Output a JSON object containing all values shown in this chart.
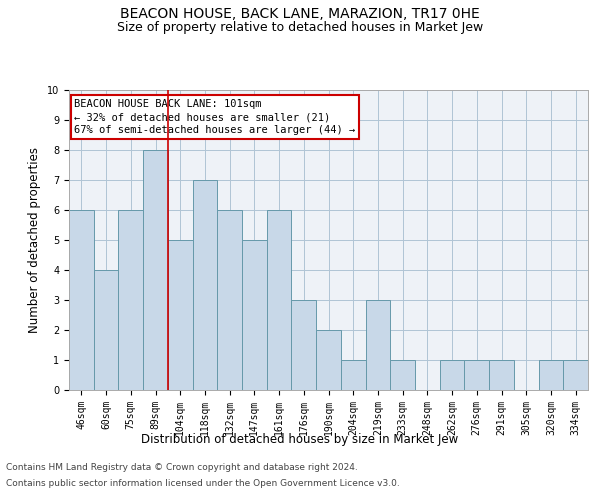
{
  "title": "BEACON HOUSE, BACK LANE, MARAZION, TR17 0HE",
  "subtitle": "Size of property relative to detached houses in Market Jew",
  "xlabel": "Distribution of detached houses by size in Market Jew",
  "ylabel": "Number of detached properties",
  "categories": [
    "46sqm",
    "60sqm",
    "75sqm",
    "89sqm",
    "104sqm",
    "118sqm",
    "132sqm",
    "147sqm",
    "161sqm",
    "176sqm",
    "190sqm",
    "204sqm",
    "219sqm",
    "233sqm",
    "248sqm",
    "262sqm",
    "276sqm",
    "291sqm",
    "305sqm",
    "320sqm",
    "334sqm"
  ],
  "values": [
    6,
    4,
    6,
    8,
    5,
    7,
    6,
    5,
    6,
    3,
    2,
    1,
    3,
    1,
    0,
    1,
    1,
    1,
    0,
    1,
    1
  ],
  "bar_color": "#c8d8e8",
  "bar_edge_color": "#6699aa",
  "highlight_index": 3,
  "highlight_line_color": "#cc0000",
  "annotation_box_text": "BEACON HOUSE BACK LANE: 101sqm\n← 32% of detached houses are smaller (21)\n67% of semi-detached houses are larger (44) →",
  "annotation_box_color": "#cc0000",
  "ylim": [
    0,
    10
  ],
  "yticks": [
    0,
    1,
    2,
    3,
    4,
    5,
    6,
    7,
    8,
    9,
    10
  ],
  "footer_line1": "Contains HM Land Registry data © Crown copyright and database right 2024.",
  "footer_line2": "Contains public sector information licensed under the Open Government Licence v3.0.",
  "bg_color": "#eef2f7",
  "grid_color": "#b0c4d4",
  "title_fontsize": 10,
  "subtitle_fontsize": 9,
  "axis_label_fontsize": 8.5,
  "tick_fontsize": 7,
  "annotation_fontsize": 7.5,
  "footer_fontsize": 6.5
}
